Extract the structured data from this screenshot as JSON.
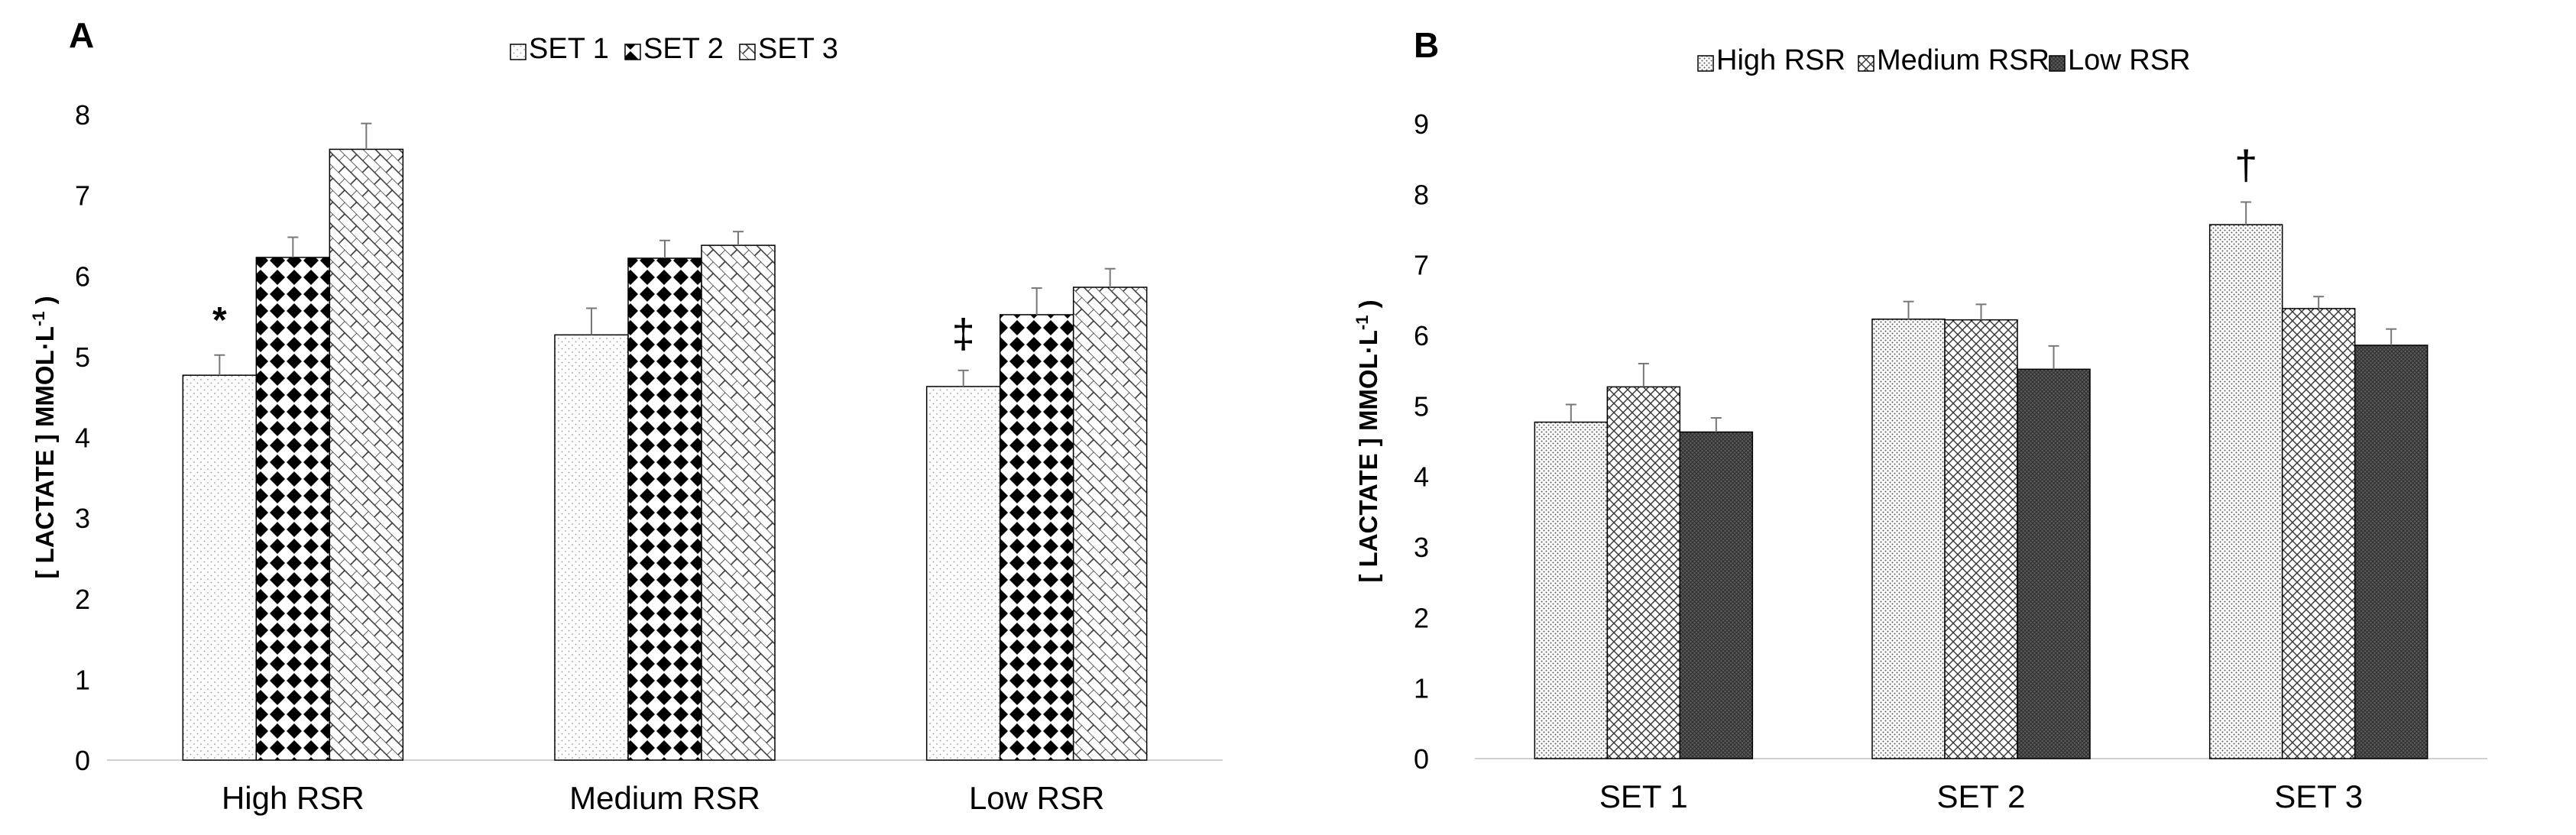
{
  "chart_data": [
    {
      "type": "bar",
      "panel_label": "A",
      "ylabel": "[ LACTATE ] MMOL·L",
      "ylabel_sup": "-1",
      "ylabel_end": " )",
      "ylim": [
        0,
        8
      ],
      "yticks": [
        0,
        1,
        2,
        3,
        4,
        5,
        6,
        7,
        8
      ],
      "grid": false,
      "legend_position": "top",
      "categories": [
        "High RSR",
        "Medium RSR",
        "Low RSR"
      ],
      "series": [
        {
          "name": "SET 1",
          "pattern": "dots",
          "values": [
            4.77,
            5.27,
            4.63
          ],
          "errors": [
            0.25,
            0.33,
            0.2
          ]
        },
        {
          "name": "SET 2",
          "pattern": "checker",
          "values": [
            6.23,
            6.22,
            5.52
          ],
          "errors": [
            0.25,
            0.22,
            0.33
          ]
        },
        {
          "name": "SET 3",
          "pattern": "brick",
          "values": [
            7.57,
            6.38,
            5.86
          ],
          "errors": [
            0.32,
            0.17,
            0.23
          ]
        }
      ],
      "annotations": [
        {
          "text": "*",
          "category": 0,
          "series": 0
        },
        {
          "text": "‡",
          "category": 2,
          "series": 0
        }
      ]
    },
    {
      "type": "bar",
      "panel_label": "B",
      "ylabel": "[ LACTATE ] MMOL·L",
      "ylabel_sup": "-1",
      "ylabel_end": " )",
      "ylim": [
        0,
        9
      ],
      "yticks": [
        0,
        1,
        2,
        3,
        4,
        5,
        6,
        7,
        8,
        9
      ],
      "grid": false,
      "legend_position": "top",
      "categories": [
        "SET 1",
        "SET 2",
        "SET 3"
      ],
      "series": [
        {
          "name": "High RSR",
          "pattern": "fine-dots",
          "values": [
            4.77,
            6.23,
            7.57
          ],
          "errors": [
            0.25,
            0.25,
            0.32
          ]
        },
        {
          "name": "Medium RSR",
          "pattern": "crosshatch",
          "values": [
            5.27,
            6.22,
            6.38
          ],
          "errors": [
            0.33,
            0.22,
            0.17
          ]
        },
        {
          "name": "Low RSR",
          "pattern": "dense",
          "values": [
            4.63,
            5.52,
            5.86
          ],
          "errors": [
            0.2,
            0.33,
            0.23
          ]
        }
      ],
      "annotations": [
        {
          "text": "†",
          "category": 2,
          "series": 0
        }
      ]
    }
  ]
}
